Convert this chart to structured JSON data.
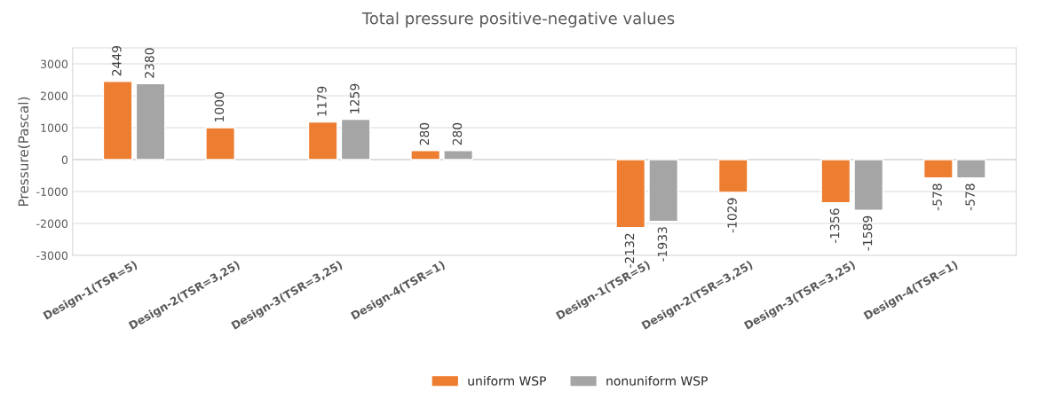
{
  "chart_data": {
    "type": "bar",
    "title": "Total pressure positive-negative values",
    "ylabel": "Pressure(Pascal)",
    "categories": [
      "Design-1(TSR=5)",
      "Design-2(TSR=3,25)",
      "Design-3(TSR=3,25)",
      "Design-4(TSR=1)",
      null,
      "Design-1(TSR=5)",
      "Design-2(TSR=3,25)",
      "Design-3(TSR=3,25)",
      "Design-4(TSR=1)"
    ],
    "series": [
      {
        "name": "uniform WSP",
        "color": "#ed7d31",
        "values": [
          2449,
          1000,
          1179,
          280,
          null,
          -2132,
          -1029,
          -1356,
          -578
        ]
      },
      {
        "name": "nonuniform WSP",
        "color": "#a5a5a5",
        "values": [
          2380,
          null,
          1259,
          280,
          null,
          -1933,
          null,
          -1589,
          -578
        ]
      }
    ],
    "ylim": [
      -3000,
      3500
    ],
    "yticks": [
      -3000,
      -2000,
      -1000,
      0,
      1000,
      2000,
      3000
    ],
    "grid": "y",
    "legend": "bottom",
    "data_labels": true
  }
}
